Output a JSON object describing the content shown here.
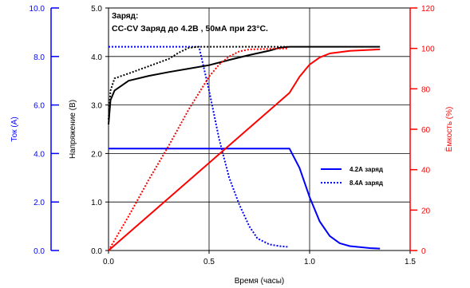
{
  "chart_data": {
    "type": "line",
    "annotation": {
      "line1": "Заряд:",
      "line2": "CC-CV Заряд до 4.2В , 50мА при 23°С."
    },
    "xlabel": "Время (часы)",
    "x_ticks": [
      "0.0",
      "0.5",
      "1.0",
      "1.5"
    ],
    "xlim": [
      0,
      1.5
    ],
    "current_axis": {
      "label": "Ток (А)",
      "ticks": [
        "0.0",
        "2.0",
        "4.0",
        "6.0",
        "8.0",
        "10.0"
      ],
      "range": [
        0,
        10
      ],
      "color": "#0000ff"
    },
    "voltage_axis": {
      "label": "Напряжение (В)",
      "ticks": [
        "0.0",
        "1.0",
        "2.0",
        "3.0",
        "4.0",
        "5.0"
      ],
      "range": [
        0,
        5
      ],
      "color": "#000000"
    },
    "capacity_axis": {
      "label": "Ёмкость (%)",
      "ticks": [
        "0",
        "20",
        "40",
        "60",
        "80",
        "100",
        "120"
      ],
      "range": [
        0,
        120
      ],
      "color": "#ff0000"
    },
    "legend": {
      "placement": "lower-right",
      "items": [
        {
          "label": "4.2А заряд",
          "style": "solid"
        },
        {
          "label": "8.4А заряд",
          "style": "dotted"
        }
      ]
    },
    "series": [
      {
        "axis": "current",
        "color": "#0000ff",
        "style": "solid",
        "points": [
          [
            0,
            4.2
          ],
          [
            0.9,
            4.2
          ],
          [
            0.95,
            3.4
          ],
          [
            1.0,
            2.2
          ],
          [
            1.05,
            1.2
          ],
          [
            1.1,
            0.6
          ],
          [
            1.15,
            0.3
          ],
          [
            1.2,
            0.18
          ],
          [
            1.3,
            0.1
          ],
          [
            1.35,
            0.08
          ]
        ]
      },
      {
        "axis": "current",
        "color": "#0000ff",
        "style": "dotted",
        "points": [
          [
            0,
            8.4
          ],
          [
            0.45,
            8.4
          ],
          [
            0.5,
            6.6
          ],
          [
            0.55,
            4.6
          ],
          [
            0.6,
            3.0
          ],
          [
            0.65,
            1.9
          ],
          [
            0.7,
            1.0
          ],
          [
            0.74,
            0.5
          ],
          [
            0.8,
            0.25
          ],
          [
            0.85,
            0.18
          ],
          [
            0.89,
            0.15
          ]
        ]
      },
      {
        "axis": "voltage",
        "color": "#000000",
        "style": "solid",
        "points": [
          [
            0,
            2.6
          ],
          [
            0.01,
            3.1
          ],
          [
            0.03,
            3.3
          ],
          [
            0.1,
            3.5
          ],
          [
            0.2,
            3.6
          ],
          [
            0.3,
            3.68
          ],
          [
            0.4,
            3.75
          ],
          [
            0.5,
            3.82
          ],
          [
            0.6,
            3.93
          ],
          [
            0.7,
            4.03
          ],
          [
            0.8,
            4.12
          ],
          [
            0.85,
            4.18
          ],
          [
            0.9,
            4.2
          ],
          [
            1.35,
            4.2
          ]
        ]
      },
      {
        "axis": "voltage",
        "color": "#000000",
        "style": "dotted",
        "points": [
          [
            0,
            2.7
          ],
          [
            0.01,
            3.3
          ],
          [
            0.03,
            3.55
          ],
          [
            0.1,
            3.65
          ],
          [
            0.2,
            3.8
          ],
          [
            0.3,
            3.95
          ],
          [
            0.35,
            4.08
          ],
          [
            0.4,
            4.18
          ],
          [
            0.45,
            4.2
          ],
          [
            0.89,
            4.2
          ]
        ]
      },
      {
        "axis": "capacity",
        "color": "#ff0000",
        "style": "solid",
        "points": [
          [
            0,
            0
          ],
          [
            0.9,
            78
          ],
          [
            0.95,
            86
          ],
          [
            1.0,
            92
          ],
          [
            1.05,
            95.5
          ],
          [
            1.1,
            97.5
          ],
          [
            1.2,
            98.8
          ],
          [
            1.35,
            99.5
          ]
        ]
      },
      {
        "axis": "capacity",
        "color": "#ff0000",
        "style": "dotted",
        "points": [
          [
            0,
            0
          ],
          [
            0.1,
            17
          ],
          [
            0.2,
            35
          ],
          [
            0.3,
            52
          ],
          [
            0.4,
            70
          ],
          [
            0.45,
            78
          ],
          [
            0.5,
            86
          ],
          [
            0.55,
            92
          ],
          [
            0.6,
            96
          ],
          [
            0.65,
            98.5
          ],
          [
            0.7,
            99.5
          ],
          [
            0.89,
            100
          ]
        ]
      }
    ]
  }
}
